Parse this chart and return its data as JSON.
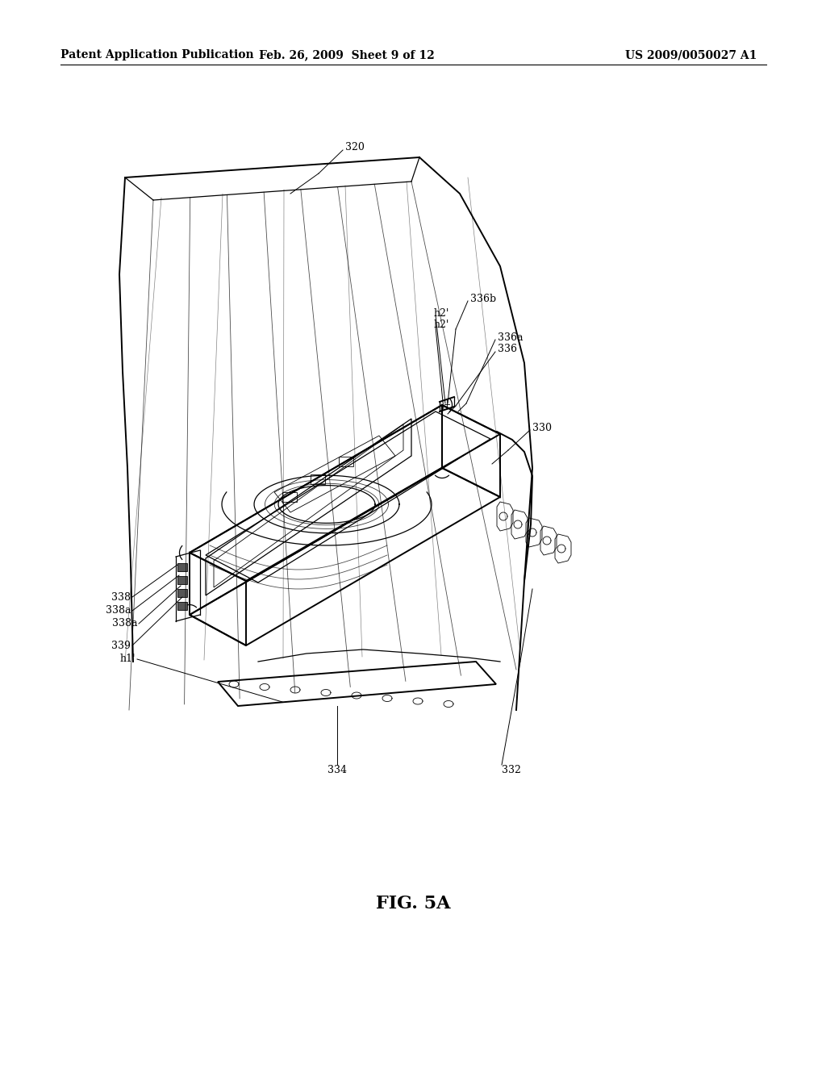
{
  "bg_color": "#ffffff",
  "header_left": "Patent Application Publication",
  "header_mid": "Feb. 26, 2009  Sheet 9 of 12",
  "header_right": "US 2009/0050027 A1",
  "fig_label": "FIG. 5A",
  "lw_main": 1.4,
  "lw_med": 0.9,
  "lw_thin": 0.6,
  "label_fontsize": 9,
  "header_fontsize": 10,
  "figlabel_fontsize": 16
}
